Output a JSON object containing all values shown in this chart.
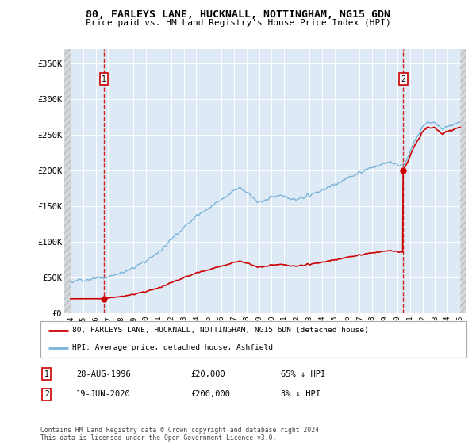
{
  "title": "80, FARLEYS LANE, HUCKNALL, NOTTINGHAM, NG15 6DN",
  "subtitle": "Price paid vs. HM Land Registry's House Price Index (HPI)",
  "sale1_year": 1996.66,
  "sale1_price": 20000,
  "sale2_year": 2020.46,
  "sale2_price": 200000,
  "hpi_color": "#7ab3d9",
  "price_color": "#cc0000",
  "bg_plot": "#ddeaf5",
  "grid_color": "#ffffff",
  "dashed_color": "#cc0000",
  "ylim_max": 370000,
  "ylim_min": 0,
  "xlim_min": 1993.5,
  "xlim_max": 2025.5,
  "xticks": [
    1994,
    1995,
    1996,
    1997,
    1998,
    1999,
    2000,
    2001,
    2002,
    2003,
    2004,
    2005,
    2006,
    2007,
    2008,
    2009,
    2010,
    2011,
    2012,
    2013,
    2014,
    2015,
    2016,
    2017,
    2018,
    2019,
    2020,
    2021,
    2022,
    2023,
    2024,
    2025
  ],
  "yticks": [
    0,
    50000,
    100000,
    150000,
    200000,
    250000,
    300000,
    350000
  ],
  "ytick_labels": [
    "£0",
    "£50K",
    "£100K",
    "£150K",
    "£200K",
    "£250K",
    "£300K",
    "£350K"
  ],
  "legend_line1": "80, FARLEYS LANE, HUCKNALL, NOTTINGHAM, NG15 6DN (detached house)",
  "legend_line2": "HPI: Average price, detached house, Ashfield",
  "label1_date": "28-AUG-1996",
  "label1_price": "£20,000",
  "label1_hpi": "65% ↓ HPI",
  "label2_date": "19-JUN-2020",
  "label2_price": "£200,000",
  "label2_hpi": "3% ↓ HPI",
  "footer": "Contains HM Land Registry data © Crown copyright and database right 2024.\nThis data is licensed under the Open Government Licence v3.0."
}
